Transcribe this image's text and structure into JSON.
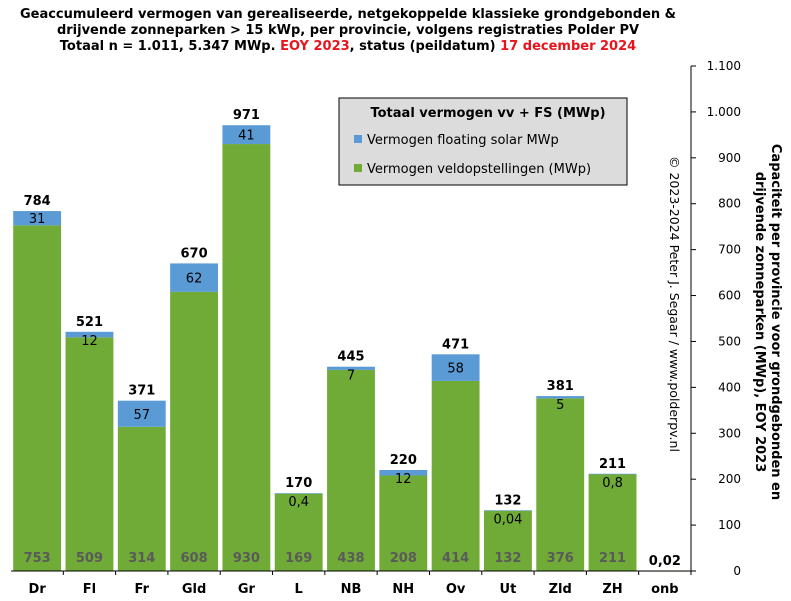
{
  "title": {
    "line1": "Geaccumuleerd vermogen van gerealiseerde, netgekoppelde klassieke grondgebonden &",
    "line2": "drijvende zonneparken > 15 kWp, per provincie, volgens registraties Polder PV",
    "line3_a": "Totaal n = 1.011, 5.347 MWp. ",
    "line3_b": "EOY 2023",
    "line3_c": ", status (peildatum) ",
    "line3_d": "17 december 2024"
  },
  "copyright": "© 2023-2024 Peter J. Segaar / www.polderpv.nl",
  "colors": {
    "veld": "#6fab36",
    "floating": "#5b9bd5",
    "plot_bg": "#ffffff",
    "grid": "#bfbfbf",
    "legend_bg": "#dcdcdc",
    "red": "#e8141c"
  },
  "chart_data": {
    "type": "bar",
    "stacked": true,
    "categories": [
      "Dr",
      "Fl",
      "Fr",
      "Gld",
      "Gr",
      "L",
      "NB",
      "NH",
      "Ov",
      "Ut",
      "Zld",
      "ZH",
      "onb"
    ],
    "series": [
      {
        "name": "Vermogen veldopstellingen (MWp)",
        "values": [
          753,
          509,
          314,
          608,
          930,
          169,
          438,
          208,
          414,
          132,
          376,
          211,
          0.02
        ],
        "labels": [
          "753",
          "509",
          "314",
          "608",
          "930",
          "169",
          "438",
          "208",
          "414",
          "132",
          "376",
          "211",
          ""
        ]
      },
      {
        "name": "Vermogen floating solar MWp",
        "values": [
          31,
          12,
          57,
          62,
          41,
          0.4,
          7,
          12,
          58,
          0.04,
          5,
          0.8,
          0
        ],
        "labels": [
          "31",
          "12",
          "57",
          "62",
          "41",
          "0,4",
          "7",
          "12",
          "58",
          "0,04",
          "5",
          "0,8",
          ""
        ]
      }
    ],
    "totals": [
      "784",
      "521",
      "371",
      "670",
      "971",
      "170",
      "445",
      "220",
      "471",
      "132",
      "381",
      "211",
      "0,02"
    ],
    "legend_title": "Totaal vermogen vv + FS (MWp)",
    "legend_position": "top-center",
    "ylabel_line1": "Capaciteit per provincie voor grondgebonden en",
    "ylabel_line2": "drijvende zonneparken (MWp), EOY 2023",
    "ylim": [
      0,
      1100
    ],
    "yticks": [
      0,
      100,
      200,
      300,
      400,
      500,
      600,
      700,
      800,
      900,
      1000,
      1100
    ],
    "ytick_labels": [
      "0",
      "100",
      "200",
      "300",
      "400",
      "500",
      "600",
      "700",
      "800",
      "900",
      "1.000",
      "1.100"
    ],
    "y_axis_side": "right",
    "grid": false
  }
}
